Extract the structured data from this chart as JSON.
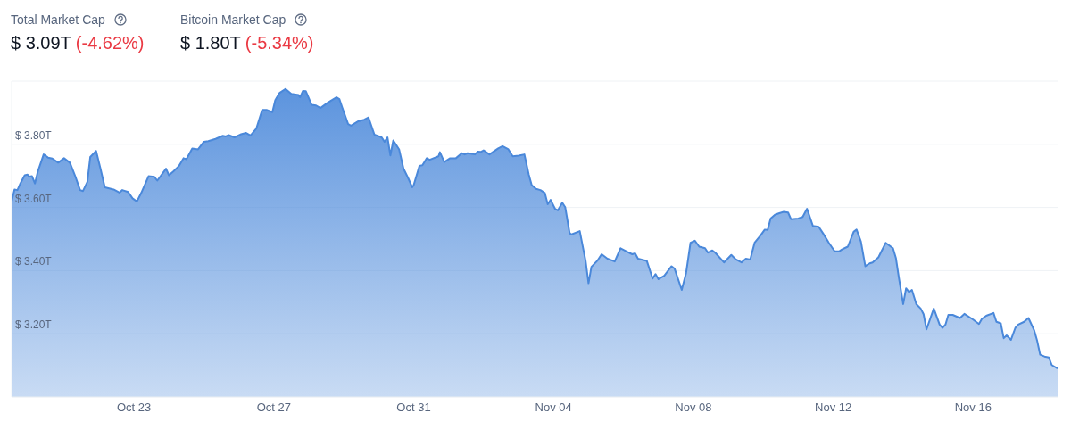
{
  "chart_data": {
    "type": "area",
    "annotations": [
      "Total Market Cap",
      "$ 3.09T",
      "(-4.62%)",
      "Bitcoin Market Cap",
      "$ 1.80T",
      "(-5.34%)"
    ],
    "x": [
      "--10-19T12:00",
      "--10-19T14:00",
      "--10-19T16:00",
      "--10-19T18:00",
      "--10-19T21:00",
      "--10-19T23:00",
      "--10-20T00:00",
      "--10-20T02:00",
      "--10-20T04:00",
      "--10-20T06:00",
      "--10-20T10:00",
      "--10-20T13:00",
      "--10-20T16:00",
      "--10-20T20:00",
      "--10-21T00:00",
      "--10-21T04:00",
      "--10-21T08:00",
      "--10-21T11:00",
      "--10-21T13:00",
      "--10-21T16:00",
      "--10-21T18:00",
      "--10-21T22:00",
      "--10-22T01:00",
      "--10-22T04:00",
      "--10-22T10:00",
      "--10-22T14:00",
      "--10-22T16:00",
      "--10-22T20:00",
      "--10-22T23:00",
      "--10-23T02:00",
      "--10-23T05:00",
      "--10-23T10:00",
      "--10-23T14:00",
      "--10-23T16:00",
      "--10-23T22:00",
      "--10-24T00:00",
      "--10-24T03:00",
      "--10-24T07:00",
      "--10-24T10:00",
      "--10-24T12:00",
      "--10-24T16:00",
      "--10-24T20:00",
      "--10-25T00:00",
      "--10-25T03:00",
      "--10-25T08:00",
      "--10-25T13:00",
      "--10-25T15:00",
      "--10-25T17:00",
      "--10-25T21:00",
      "--10-26T01:00",
      "--10-26T05:00",
      "--10-26T08:00",
      "--10-26T12:00",
      "--10-26T16:00",
      "--10-26T19:00",
      "--10-26T23:00",
      "--10-27T01:00",
      "--10-27T04:00",
      "--10-27T08:00",
      "--10-27T12:00",
      "--10-27T17:00",
      "--10-27T18:00",
      "--10-27T20:00",
      "--10-27T22:00",
      "--10-28T02:00",
      "--10-28T05:00",
      "--10-28T08:00",
      "--10-28T13:00",
      "--10-28T19:00",
      "--10-28T21:00",
      "--10-28T23:00",
      "--10-29T03:00",
      "--10-29T05:00",
      "--10-29T10:00",
      "--10-29T14:00",
      "--10-29T17:00",
      "--10-29T21:00",
      "--10-30T02:00",
      "--10-30T04:00",
      "--10-30T06:00",
      "--10-30T08:00",
      "--10-30T10:00",
      "--10-30T14:00",
      "--10-30T17:00",
      "--10-30T20:00",
      "--10-30T23:00",
      "--10-31T00:00",
      "--10-31T04:00",
      "--10-31T06:00",
      "--10-31T09:00",
      "--10-31T11:00",
      "--10-31T17:00",
      "--10-31T18:00",
      "--10-31T21:00",
      "--11-01T01:00",
      "--11-01T05:00",
      "--11-01T09:00",
      "--11-01T11:00",
      "--11-01T13:00",
      "--11-01T18:00",
      "--11-01T20:00",
      "--11-01T22:00",
      "--11-02T00:00",
      "--11-02T04:00",
      "--11-02T10:00",
      "--11-02T13:00",
      "--11-02T17:00",
      "--11-02T20:00",
      "--11-03T00:00",
      "--11-03T04:00",
      "--11-03T07:00",
      "--11-03T09:00",
      "--11-03T12:00",
      "--11-03T15:00",
      "--11-03T18:00",
      "--11-03T20:00",
      "--11-03T22:00",
      "--11-04T01:00",
      "--11-04T03:00",
      "--11-04T06:00",
      "--11-04T08:00",
      "--11-04T11:00",
      "--11-04T12:00",
      "--11-04T18:00",
      "--11-04T22:00",
      "--11-05T00:00",
      "--11-05T02:00",
      "--11-05T06:00",
      "--11-05T09:00",
      "--11-05T13:00",
      "--11-05T18:00",
      "--11-05T22:00",
      "--11-06T03:00",
      "--11-06T06:00",
      "--11-06T08:00",
      "--11-06T10:00",
      "--11-06T16:00",
      "--11-06T20:00",
      "--11-06T22:00",
      "--11-07T00:00",
      "--11-07T04:00",
      "--11-07T09:00",
      "--11-07T11:00",
      "--11-07T16:00",
      "--11-07T19:00",
      "--11-07T22:00",
      "--11-08T01:00",
      "--11-08T04:00",
      "--11-08T08:00",
      "--11-08T10:00",
      "--11-08T13:00",
      "--11-08T15:00",
      "--11-08T21:00",
      "--11-09T02:00",
      "--11-09T05:00",
      "--11-09T09:00",
      "--11-09T12:00",
      "--11-09T15:00",
      "--11-09T18:00",
      "--11-09T22:00",
      "--11-10T01:00",
      "--11-10T03:00",
      "--11-10T05:00",
      "--11-10T08:00",
      "--11-10T11:00",
      "--11-10T14:00",
      "--11-10T17:00",
      "--11-10T19:00",
      "--11-11T00:00",
      "--11-11T03:00",
      "--11-11T06:00",
      "--11-11T10:00",
      "--11-11T14:00",
      "--11-11T17:00",
      "--11-11T21:00",
      "--11-12T01:00",
      "--11-12T04:00",
      "--11-12T06:00",
      "--11-12T10:00",
      "--11-12T14:00",
      "--11-12T16:00",
      "--11-12T19:00",
      "--11-12T22:00",
      "--11-13T01:00",
      "--11-13T03:00",
      "--11-13T07:00",
      "--11-13T12:00",
      "--11-13T17:00",
      "--11-13T19:00",
      "--11-13T21:00",
      "--11-14T00:00",
      "--11-14T02:00",
      "--11-14T04:00",
      "--11-14T06:00",
      "--11-14T09:00",
      "--11-14T12:00",
      "--11-14T14:00",
      "--11-14T16:00",
      "--11-14T21:00",
      "--11-15T01:00",
      "--11-15T03:00",
      "--11-15T05:00",
      "--11-15T07:00",
      "--11-15T10:00",
      "--11-15T15:00",
      "--11-15T18:00",
      "--11-16T00:00",
      "--11-16T04:00",
      "--11-16T06:00",
      "--11-16T09:00",
      "--11-16T14:00",
      "--11-16T16:00",
      "--11-16T19:00",
      "--11-16T21:00",
      "--11-16T23:00",
      "--11-17T02:00",
      "--11-17T05:00",
      "--11-17T07:00",
      "--11-17T11:00",
      "--11-17T14:00",
      "--11-17T18:00",
      "--11-17T20:00",
      "--11-17T22:00",
      "--11-18T01:00",
      "--11-18T04:00",
      "--11-18T06:00",
      "--11-18T10:00"
    ],
    "series": [
      {
        "color": "#4a88da",
        "values": [
          3.619,
          3.657,
          3.655,
          3.676,
          3.702,
          3.704,
          3.698,
          3.699,
          3.676,
          3.714,
          3.768,
          3.758,
          3.755,
          3.742,
          3.756,
          3.742,
          3.695,
          3.655,
          3.652,
          3.681,
          3.76,
          3.779,
          3.723,
          3.664,
          3.657,
          3.647,
          3.655,
          3.649,
          3.629,
          3.619,
          3.646,
          3.699,
          3.697,
          3.685,
          3.723,
          3.702,
          3.714,
          3.732,
          3.756,
          3.753,
          3.787,
          3.784,
          3.808,
          3.81,
          3.817,
          3.827,
          3.825,
          3.829,
          3.822,
          3.831,
          3.836,
          3.828,
          3.85,
          3.909,
          3.909,
          3.902,
          3.94,
          3.963,
          3.975,
          3.96,
          3.956,
          3.949,
          3.969,
          3.968,
          3.925,
          3.923,
          3.915,
          3.932,
          3.949,
          3.943,
          3.916,
          3.864,
          3.859,
          3.873,
          3.878,
          3.885,
          3.831,
          3.822,
          3.808,
          3.822,
          3.765,
          3.812,
          3.784,
          3.723,
          3.695,
          3.664,
          3.671,
          3.732,
          3.734,
          3.756,
          3.751,
          3.762,
          3.775,
          3.744,
          3.756,
          3.756,
          3.772,
          3.768,
          3.772,
          3.768,
          3.777,
          3.776,
          3.781,
          3.768,
          3.787,
          3.794,
          3.784,
          3.762,
          3.764,
          3.768,
          3.704,
          3.671,
          3.659,
          3.655,
          3.646,
          3.61,
          3.624,
          3.596,
          3.591,
          3.615,
          3.601,
          3.52,
          3.514,
          3.525,
          3.431,
          3.36,
          3.412,
          3.431,
          3.452,
          3.438,
          3.429,
          3.471,
          3.459,
          3.452,
          3.455,
          3.438,
          3.431,
          3.375,
          3.389,
          3.373,
          3.384,
          3.414,
          3.407,
          3.339,
          3.393,
          3.488,
          3.495,
          3.476,
          3.471,
          3.457,
          3.464,
          3.457,
          3.426,
          3.45,
          3.436,
          3.426,
          3.438,
          3.435,
          3.488,
          3.511,
          3.53,
          3.529,
          3.565,
          3.577,
          3.582,
          3.586,
          3.584,
          3.563,
          3.565,
          3.57,
          3.596,
          3.542,
          3.539,
          3.518,
          3.488,
          3.461,
          3.461,
          3.467,
          3.476,
          3.523,
          3.53,
          3.492,
          3.414,
          3.423,
          3.426,
          3.442,
          3.488,
          3.471,
          3.44,
          3.379,
          3.294,
          3.344,
          3.332,
          3.339,
          3.294,
          3.28,
          3.262,
          3.214,
          3.28,
          3.229,
          3.219,
          3.229,
          3.26,
          3.26,
          3.25,
          3.263,
          3.245,
          3.231,
          3.247,
          3.257,
          3.266,
          3.238,
          3.233,
          3.186,
          3.195,
          3.181,
          3.219,
          3.229,
          3.238,
          3.25,
          3.21,
          3.177,
          3.134,
          3.128,
          3.125,
          3.101,
          3.09
        ]
      }
    ],
    "xlim": [
      "--10-19T12:00",
      "--11-18T10:00"
    ],
    "xticks": [
      {
        "value": "--10-23",
        "label": "Oct 23"
      },
      {
        "value": "--10-27",
        "label": "Oct 27"
      },
      {
        "value": "--10-31",
        "label": "Oct 31"
      },
      {
        "value": "--11-04",
        "label": "Nov 04"
      },
      {
        "value": "--11-08",
        "label": "Nov 08"
      },
      {
        "value": "--11-12",
        "label": "Nov 12"
      },
      {
        "value": "--11-16",
        "label": "Nov 16"
      }
    ],
    "ylim": [
      3.0,
      4.0
    ],
    "yticks": [
      {
        "value": 3.2,
        "label": "$ 3.20T"
      },
      {
        "value": 3.4,
        "label": "$ 3.40T"
      },
      {
        "value": 3.6,
        "label": "$ 3.60T"
      },
      {
        "value": 3.8,
        "label": "$ 3.80T"
      }
    ],
    "grid": "y"
  }
}
